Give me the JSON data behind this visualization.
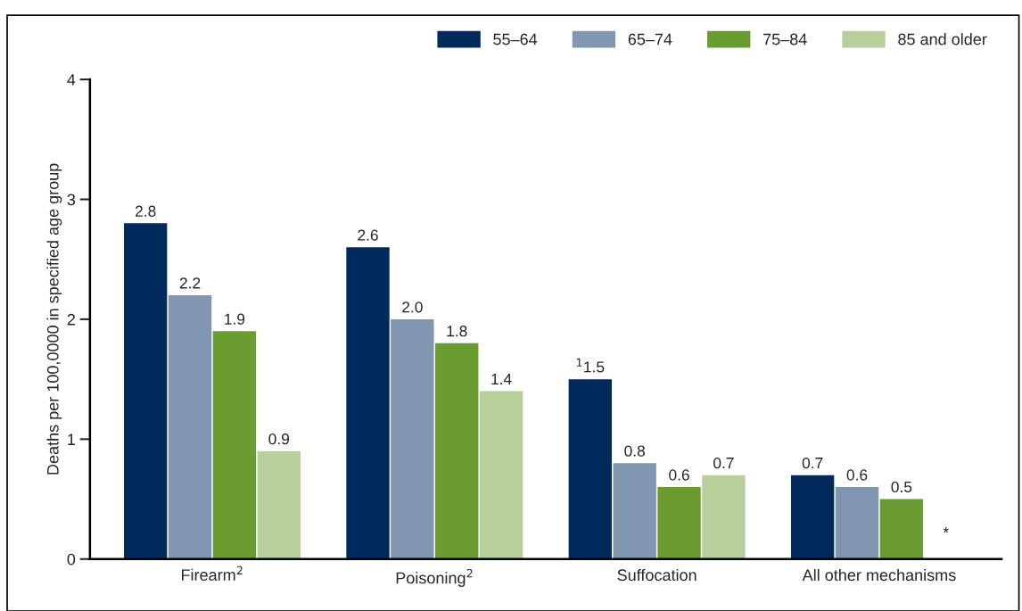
{
  "chart_data": {
    "type": "bar",
    "ylabel": "Deaths per 100,0000 in specified age group",
    "categories": [
      "Firearm$^{2}$",
      "Poisoning$^{2}$",
      "Suffocation",
      "All other mechanisms"
    ],
    "series": [
      {
        "name": "55–64",
        "color": "#002a5c",
        "values": [
          2.8,
          2.6,
          1.5,
          0.7
        ],
        "value_labels": [
          "2.8",
          "2.6",
          "$^{1}$1.5",
          "0.7"
        ]
      },
      {
        "name": "65–74",
        "color": "#8196b0",
        "values": [
          2.2,
          2.0,
          0.8,
          0.6
        ],
        "value_labels": [
          "2.2",
          "2.0",
          "0.8",
          "0.6"
        ]
      },
      {
        "name": "75–84",
        "color": "#6b9c31",
        "values": [
          1.9,
          1.8,
          0.6,
          0.5
        ],
        "value_labels": [
          "1.9",
          "1.8",
          "0.6",
          "0.5"
        ]
      },
      {
        "name": "85 and older",
        "color": "#b7cf9a",
        "values": [
          0.9,
          1.4,
          0.7,
          null
        ],
        "value_labels": [
          "0.9",
          "1.4",
          "0.7",
          "*"
        ]
      }
    ],
    "ylim": [
      0,
      4
    ],
    "yticks": [
      0,
      1,
      2,
      3,
      4
    ],
    "grid": false,
    "legend": "top right"
  }
}
